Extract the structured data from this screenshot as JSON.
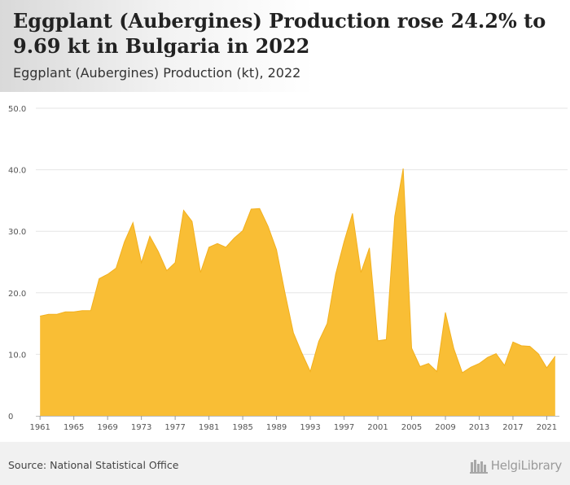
{
  "header": {
    "title": "Eggplant (Aubergines) Production rose 24.2% to 9.69 kt in Bulgaria in 2022",
    "subtitle": "Eggplant (Aubergines) Production (kt), 2022"
  },
  "footer": {
    "source": "Source: National Statistical Office",
    "brand": "HelgiLibrary"
  },
  "colors": {
    "area_fill": "#f9be35",
    "area_stroke": "#f2b01e",
    "grid": "#e6e6e6"
  },
  "chart_data": {
    "type": "area",
    "title": "Eggplant (Aubergines) Production (kt), 2022",
    "xlabel": "",
    "ylabel": "",
    "ylim": [
      0,
      50
    ],
    "yticks": [
      "0",
      "10.0",
      "20.0",
      "30.0",
      "40.0",
      "50.0"
    ],
    "xticks": [
      "1961",
      "1965",
      "1969",
      "1973",
      "1977",
      "1981",
      "1985",
      "1989",
      "1993",
      "1997",
      "2001",
      "2005",
      "2009",
      "2013",
      "2017",
      "2021"
    ],
    "grid": "horizontal",
    "legend": "none",
    "x": [
      1961,
      1962,
      1963,
      1964,
      1965,
      1966,
      1967,
      1968,
      1969,
      1970,
      1971,
      1972,
      1973,
      1974,
      1975,
      1976,
      1977,
      1978,
      1979,
      1980,
      1981,
      1982,
      1983,
      1984,
      1985,
      1986,
      1987,
      1988,
      1989,
      1990,
      1991,
      1992,
      1993,
      1994,
      1995,
      1996,
      1997,
      1998,
      1999,
      2000,
      2001,
      2002,
      2003,
      2004,
      2005,
      2006,
      2007,
      2008,
      2009,
      2010,
      2011,
      2012,
      2013,
      2014,
      2015,
      2016,
      2017,
      2018,
      2019,
      2020,
      2021,
      2022
    ],
    "values": [
      16.2,
      16.5,
      16.5,
      16.9,
      16.9,
      17.1,
      17.1,
      22.3,
      23.0,
      24.0,
      28.3,
      31.4,
      24.9,
      29.2,
      26.7,
      23.6,
      24.9,
      33.4,
      31.6,
      23.3,
      27.4,
      28.0,
      27.4,
      28.9,
      30.1,
      33.6,
      33.7,
      30.8,
      27.0,
      20.0,
      13.5,
      10.2,
      7.2,
      12.1,
      15.0,
      23.0,
      28.3,
      32.9,
      23.3,
      27.3,
      12.2,
      12.4,
      32.4,
      40.2,
      11.0,
      8.0,
      8.5,
      7.2,
      16.8,
      10.9,
      7.0,
      7.9,
      8.5,
      9.5,
      10.1,
      8.2,
      12.0,
      11.4,
      11.3,
      10.1,
      7.8,
      9.69
    ]
  }
}
